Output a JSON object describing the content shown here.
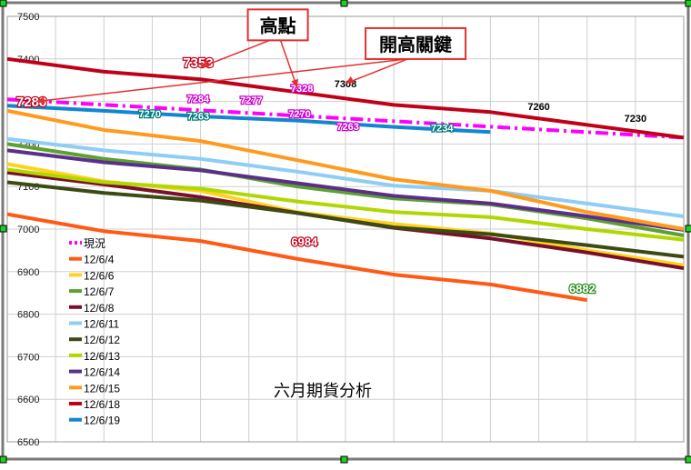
{
  "chart_data": {
    "type": "line",
    "title": "六月期貨分析",
    "x": [
      1,
      2,
      3,
      4,
      5,
      6,
      7,
      8,
      9,
      10,
      11,
      12,
      13,
      14,
      15
    ],
    "ylim": [
      6500,
      7500
    ],
    "yticks": [
      7500,
      7400,
      7300,
      7200,
      7100,
      7000,
      6900,
      6800,
      6700,
      6600,
      6500
    ],
    "grid": true,
    "legend_position": "left",
    "series": [
      {
        "name": "現況",
        "color": "#ff00ff",
        "dashed": true,
        "x": [
          1,
          15
        ],
        "values": [
          7305,
          7215
        ]
      },
      {
        "name": "12/6/4",
        "color": "#ff5a14",
        "x": [
          1,
          3,
          5,
          7,
          9,
          11,
          13
        ],
        "values": [
          7035,
          6995,
          6972,
          6930,
          6893,
          6870,
          6833
        ]
      },
      {
        "name": "12/6/6",
        "color": "#ffd21e",
        "x": [
          1,
          3,
          5,
          7,
          9,
          11,
          13,
          15
        ],
        "values": [
          7153,
          7112,
          7090,
          7040,
          7012,
          6990,
          6950,
          6915
        ]
      },
      {
        "name": "12/6/7",
        "color": "#5ea030",
        "x": [
          1,
          3,
          5,
          7,
          9,
          11,
          13,
          15
        ],
        "values": [
          7200,
          7165,
          7140,
          7100,
          7072,
          7058,
          7025,
          6985
        ]
      },
      {
        "name": "12/6/8",
        "color": "#7a0f2a",
        "x": [
          1,
          3,
          5,
          7,
          9,
          11,
          13,
          15
        ],
        "values": [
          7133,
          7105,
          7075,
          7038,
          7003,
          6978,
          6945,
          6908
        ]
      },
      {
        "name": "12/6/11",
        "color": "#8ecdf5",
        "x": [
          1,
          3,
          5,
          7,
          9,
          11,
          13,
          15
        ],
        "values": [
          7212,
          7185,
          7165,
          7135,
          7102,
          7090,
          7060,
          7030
        ]
      },
      {
        "name": "12/6/12",
        "color": "#3c4a14",
        "x": [
          1,
          3,
          5,
          7,
          9,
          11,
          13,
          15
        ],
        "values": [
          7110,
          7085,
          7067,
          7038,
          7004,
          6988,
          6962,
          6935
        ]
      },
      {
        "name": "12/6/13",
        "color": "#b0d800",
        "x": [
          1,
          3,
          5,
          7,
          9,
          11,
          13,
          15
        ],
        "values": [
          7140,
          7110,
          7095,
          7065,
          7040,
          7028,
          7000,
          6975
        ]
      },
      {
        "name": "12/6/14",
        "color": "#5a2f8a",
        "x": [
          1,
          3,
          5,
          7,
          9,
          11,
          13,
          15
        ],
        "values": [
          7185,
          7157,
          7138,
          7108,
          7078,
          7060,
          7030,
          6998
        ]
      },
      {
        "name": "12/6/15",
        "color": "#ff9a1e",
        "x": [
          1,
          3,
          5,
          7,
          9,
          11,
          13,
          15
        ],
        "values": [
          7278,
          7233,
          7207,
          7162,
          7117,
          7090,
          7040,
          7000
        ]
      },
      {
        "name": "12/6/18",
        "color": "#c00018",
        "x": [
          1,
          3,
          5,
          7,
          9,
          11,
          13,
          15
        ],
        "values": [
          7400,
          7370,
          7352,
          7322,
          7292,
          7275,
          7245,
          7215
        ]
      },
      {
        "name": "12/6/19",
        "color": "#1286d0",
        "x": [
          1,
          3,
          5,
          7,
          9,
          11
        ],
        "values": [
          7290,
          7278,
          7265,
          7255,
          7240,
          7228
        ]
      }
    ],
    "data_labels": [
      {
        "text": "7288",
        "x": 1.5,
        "y": 7288,
        "color": "#ffffff",
        "stroke": "#c00018",
        "size": 15
      },
      {
        "text": "7353",
        "x": 4.95,
        "y": 7380,
        "color": "#ffffff",
        "stroke": "#c00018",
        "size": 15
      },
      {
        "text": "7284",
        "x": 4.95,
        "y": 7298,
        "color": "#ffffff",
        "stroke": "#cc00cc",
        "size": 11
      },
      {
        "text": "7277",
        "x": 6.05,
        "y": 7295,
        "color": "#ffffff",
        "stroke": "#cc00cc",
        "size": 11
      },
      {
        "text": "7328",
        "x": 7.1,
        "y": 7323,
        "color": "#ffffff",
        "stroke": "#cc00cc",
        "size": 11
      },
      {
        "text": "7308",
        "x": 8.0,
        "y": 7333,
        "color": "#000000",
        "stroke": "none",
        "size": 11
      },
      {
        "text": "7270",
        "x": 3.95,
        "y": 7263,
        "color": "#ffffff",
        "stroke": "#007a7a",
        "size": 11
      },
      {
        "text": "7263",
        "x": 4.95,
        "y": 7258,
        "color": "#ffffff",
        "stroke": "#007a7a",
        "size": 11
      },
      {
        "text": "7270",
        "x": 7.05,
        "y": 7263,
        "color": "#ffffff",
        "stroke": "#cc00cc",
        "size": 11
      },
      {
        "text": "7263",
        "x": 8.05,
        "y": 7233,
        "color": "#ffffff",
        "stroke": "#cc00cc",
        "size": 11
      },
      {
        "text": "7234",
        "x": 10.0,
        "y": 7230,
        "color": "#ffffff",
        "stroke": "#007a7a",
        "size": 11
      },
      {
        "text": "7260",
        "x": 12.0,
        "y": 7280,
        "color": "#000000",
        "stroke": "none",
        "size": 11
      },
      {
        "text": "7230",
        "x": 14.0,
        "y": 7252,
        "color": "#000000",
        "stroke": "none",
        "size": 11
      },
      {
        "text": "6984",
        "x": 7.15,
        "y": 6960,
        "color": "#ffffff",
        "stroke": "#c00018",
        "size": 13
      },
      {
        "text": "6882",
        "x": 12.9,
        "y": 6850,
        "color": "#ffffff",
        "stroke": "#2a8a20",
        "size": 13
      }
    ],
    "callouts": [
      {
        "text": "高點",
        "x": 6.6,
        "y": 7480,
        "arrows": [
          {
            "x": 5.0,
            "y": 7380
          },
          {
            "x": 7.0,
            "y": 7332
          }
        ]
      },
      {
        "text": "開高關鍵",
        "x": 9.45,
        "y": 7436,
        "arrows": [
          {
            "x": 1.6,
            "y": 7300
          },
          {
            "x": 8.0,
            "y": 7342
          }
        ]
      }
    ]
  }
}
